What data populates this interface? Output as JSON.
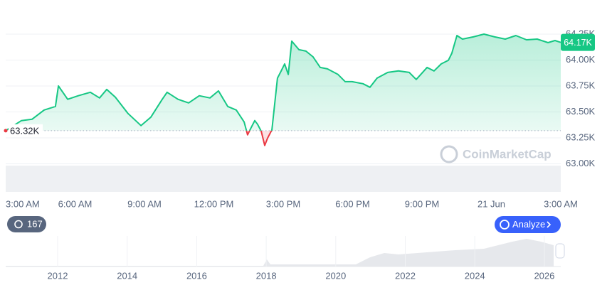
{
  "chart_data": {
    "type": "line",
    "x": [
      0,
      0.68,
      1.14,
      1.66,
      2.15,
      2.28,
      2.68,
      3.14,
      3.66,
      4.06,
      4.37,
      4.74,
      5.29,
      5.85,
      6.28,
      6.77,
      6.98,
      7.45,
      7.91,
      8.37,
      8.83,
      9.2,
      9.6,
      9.97,
      10.31,
      10.46,
      10.58,
      10.77,
      10.89,
      11.05,
      11.2,
      11.32,
      11.51,
      11.75,
      11.91,
      12.06,
      12.22,
      12.37,
      12.68,
      12.98,
      13.29,
      13.6,
      13.91,
      14.37,
      14.68,
      14.98,
      15.45,
      15.75,
      16.06,
      16.52,
      16.98,
      17.45,
      17.75,
      18.22,
      18.52,
      18.83,
      19.14,
      19.29,
      19.51,
      19.75,
      20.22,
      20.68,
      21.14,
      21.6,
      22.06,
      22.52,
      22.98,
      23.45,
      23.75,
      24
    ],
    "series": [
      {
        "color": "#16c784",
        "values": [
          63320,
          63417,
          63430,
          63519,
          63553,
          63751,
          63622,
          63656,
          63690,
          63635,
          63717,
          63642,
          63485,
          63369,
          63451,
          63622,
          63690,
          63622,
          63587,
          63656,
          63635,
          63703,
          63553,
          63519,
          63403,
          63280,
          63335,
          63417,
          63382,
          63314,
          63178,
          63246,
          63328,
          63826,
          63895,
          63963,
          63861,
          64182,
          64100,
          64086,
          64031,
          63929,
          63915,
          63861,
          63792,
          63792,
          63772,
          63738,
          63826,
          63881,
          63895,
          63881,
          63813,
          63929,
          63895,
          63963,
          63997,
          64065,
          64236,
          64202,
          64223,
          64250,
          64223,
          64202,
          64236,
          64195,
          64202,
          64168,
          64188,
          64170
        ]
      }
    ],
    "below_color": "#ea3943",
    "xlim": [
      0,
      24
    ],
    "xticks": [
      {
        "value": 0,
        "label": "3:00 AM"
      },
      {
        "value": 3,
        "label": "6:00 AM"
      },
      {
        "value": 6,
        "label": "9:00 AM"
      },
      {
        "value": 9,
        "label": "12:00 PM"
      },
      {
        "value": 12,
        "label": "3:00 PM"
      },
      {
        "value": 15,
        "label": "6:00 PM"
      },
      {
        "value": 18,
        "label": "9:00 PM"
      },
      {
        "value": 21,
        "label": "21 Jun"
      },
      {
        "value": 24,
        "label": "3:00 AM"
      }
    ],
    "ylim": [
      62730,
      64510
    ],
    "yticks": [
      {
        "value": 63000,
        "label": "63.00K"
      },
      {
        "value": 63250,
        "label": "63.25K"
      },
      {
        "value": 63500,
        "label": "63.50K"
      },
      {
        "value": 63750,
        "label": "63.75K"
      },
      {
        "value": 64000,
        "label": "64.00K"
      },
      {
        "value": 64250,
        "label": "64.25K"
      }
    ],
    "grid": true,
    "baseline": {
      "value": 63320,
      "label": "63.32K"
    },
    "last_price": {
      "value": 64170,
      "label": "64.17K"
    }
  },
  "watermark": "CoinMarketCap",
  "controls": {
    "history_count": "167",
    "analyze_button": "Analyze"
  },
  "navigator": {
    "year_labels": [
      "2012",
      "2014",
      "2016",
      "2018",
      "2020",
      "2022",
      "2024",
      "2026"
    ]
  }
}
